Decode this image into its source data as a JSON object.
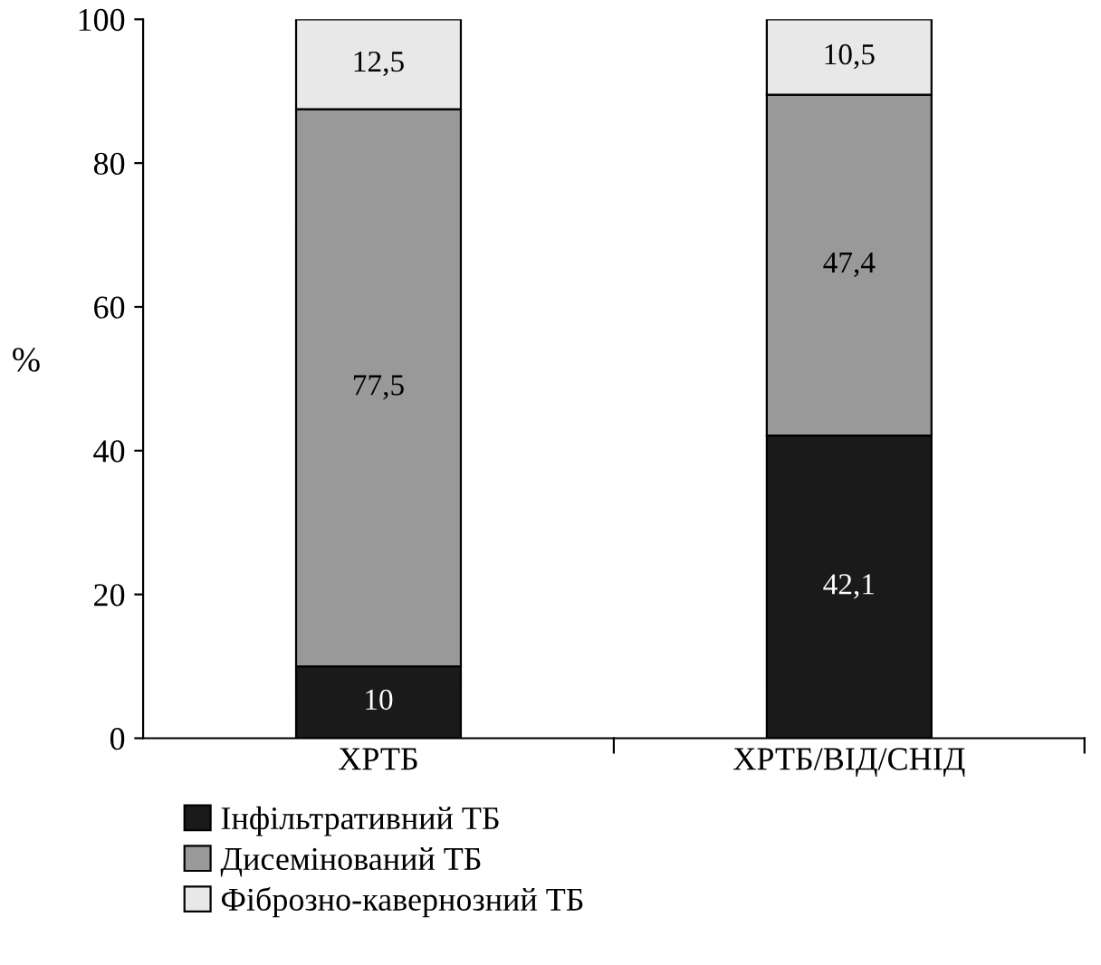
{
  "chart_data": {
    "type": "bar",
    "stacked": true,
    "ylabel": "%",
    "categories": [
      "ХРТБ",
      "ХРТБ/ВІД/СНІД"
    ],
    "series": [
      {
        "name": "Інфільтративний ТБ",
        "color": "#1a1a1a",
        "values": [
          10,
          42.1
        ],
        "value_labels": [
          "10",
          "42,1"
        ]
      },
      {
        "name": "Дисемінований ТБ",
        "color": "#999999",
        "values": [
          77.5,
          47.4
        ],
        "value_labels": [
          "77,5",
          "47,4"
        ]
      },
      {
        "name": "Фіброзно-кавернозний ТБ",
        "color": "#e8e8e8",
        "values": [
          12.5,
          10.5
        ],
        "value_labels": [
          "12,5",
          "10,5"
        ]
      }
    ],
    "ylim": [
      0,
      100
    ],
    "yticks": [
      0,
      20,
      40,
      60,
      80,
      100
    ],
    "grid": false,
    "legend": "bottom left"
  }
}
